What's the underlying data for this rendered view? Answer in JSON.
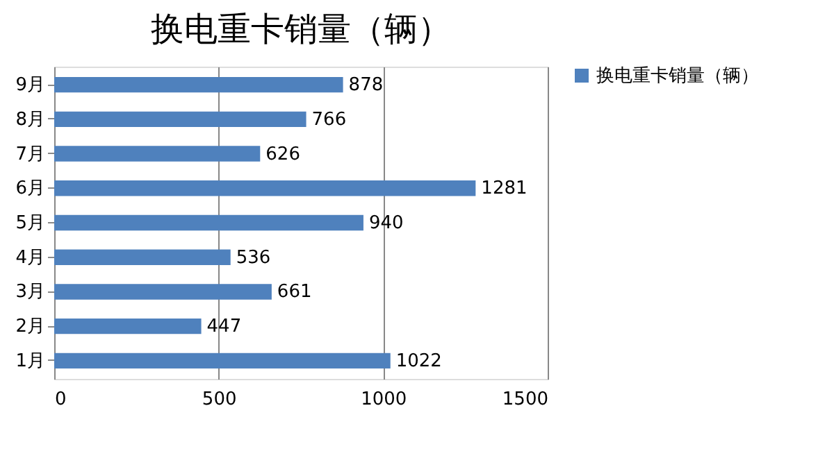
{
  "chart_data": {
    "type": "bar",
    "orientation": "horizontal",
    "title": "换电重卡销量（辆）",
    "categories": [
      "9月",
      "8月",
      "7月",
      "6月",
      "5月",
      "4月",
      "3月",
      "2月",
      "1月"
    ],
    "series": [
      {
        "name": "换电重卡销量（辆）",
        "color": "#4f81bd",
        "values": [
          878,
          766,
          626,
          1281,
          940,
          536,
          661,
          447,
          1022
        ]
      }
    ],
    "xlim": [
      0,
      1500
    ],
    "xticks": [
      0,
      500,
      1000,
      1500
    ],
    "grid": "x",
    "legend": "right",
    "data_labels": true
  }
}
